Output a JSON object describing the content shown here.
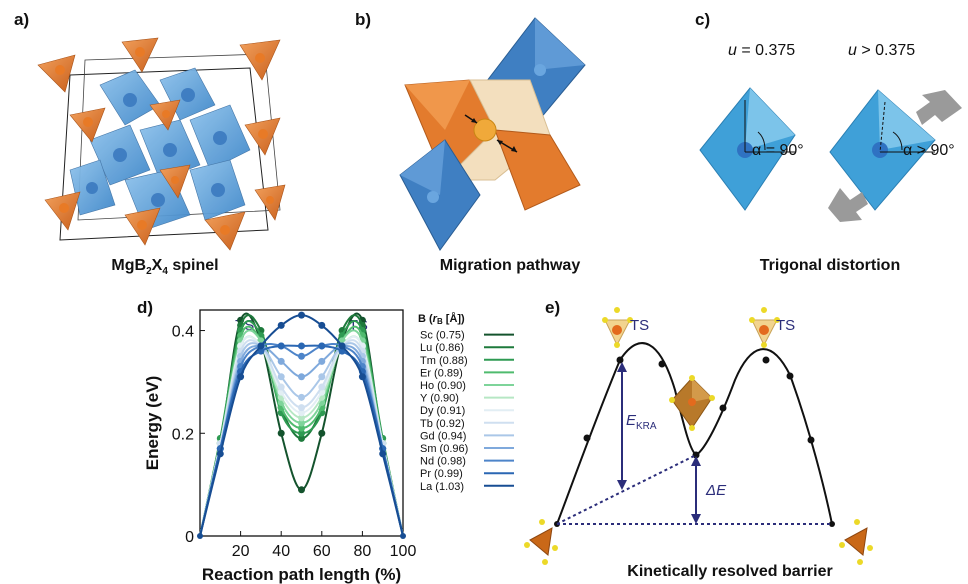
{
  "panels": {
    "a": {
      "label": "a)",
      "caption_main": "MgB",
      "caption_sub1": "2",
      "caption_mid": "X",
      "caption_sub2": "4",
      "caption_tail": " spinel"
    },
    "b": {
      "label": "b)",
      "caption": "Migration pathway"
    },
    "c": {
      "label": "c)",
      "caption": "Trigonal distortion",
      "u_equal_var": "u",
      "u_equal_rest": " = 0.375",
      "u_greater_var": "u",
      "u_greater_rest": " > 0.375",
      "angle_equal": "α = 90°",
      "angle_greater": "α > 90°"
    },
    "d": {
      "label": "d)"
    },
    "e": {
      "label": "e)",
      "caption": "Kinetically resolved barrier",
      "ts_left": "TS",
      "ts_right": "TS",
      "ekra_main": "E",
      "ekra_sub": "KRA",
      "delta_e": "ΔE"
    }
  },
  "chart_data": {
    "type": "line",
    "xlabel": "Reaction path length (%)",
    "ylabel": "Energy (eV)",
    "xlim": [
      0,
      100
    ],
    "ylim": [
      0,
      0.44
    ],
    "xticks": [
      "20",
      "40",
      "60",
      "80",
      "100"
    ],
    "xtick_values": [
      20,
      40,
      60,
      80,
      100
    ],
    "yticks": [
      "0",
      "0.2",
      "0.4"
    ],
    "ytick_values": [
      0,
      0.2,
      0.4
    ],
    "annotations": [
      "TS",
      "TS"
    ],
    "legend_title": "B (r_B [Å])",
    "legend_title_main": "B (",
    "legend_title_var": "r",
    "legend_title_sub": "B",
    "legend_title_tail": " [Å])",
    "x": [
      0,
      10,
      20,
      30,
      40,
      50,
      60,
      70,
      80,
      90,
      100
    ],
    "series": [
      {
        "name": "Sc (0.75)",
        "color": "#14532d",
        "values": [
          0,
          0.18,
          0.42,
          0.38,
          0.2,
          0.09,
          0.2,
          0.38,
          0.42,
          0.18,
          0
        ]
      },
      {
        "name": "Lu (0.86)",
        "color": "#1e7a3c",
        "values": [
          0,
          0.18,
          0.41,
          0.4,
          0.25,
          0.19,
          0.25,
          0.4,
          0.41,
          0.18,
          0
        ]
      },
      {
        "name": "Tm (0.88)",
        "color": "#2e9a52",
        "values": [
          0,
          0.19,
          0.4,
          0.39,
          0.24,
          0.2,
          0.24,
          0.39,
          0.4,
          0.19,
          0
        ]
      },
      {
        "name": "Er (0.89)",
        "color": "#4fbb6e",
        "values": [
          0,
          0.18,
          0.39,
          0.38,
          0.25,
          0.21,
          0.25,
          0.38,
          0.39,
          0.18,
          0
        ]
      },
      {
        "name": "Ho (0.90)",
        "color": "#7ed49a",
        "values": [
          0,
          0.18,
          0.38,
          0.38,
          0.26,
          0.22,
          0.26,
          0.38,
          0.38,
          0.18,
          0
        ]
      },
      {
        "name": "Y (0.90)",
        "color": "#b6e7c4",
        "values": [
          0,
          0.18,
          0.37,
          0.37,
          0.27,
          0.23,
          0.27,
          0.37,
          0.37,
          0.18,
          0
        ]
      },
      {
        "name": "Dy (0.91)",
        "color": "#e2eef4",
        "values": [
          0,
          0.18,
          0.37,
          0.37,
          0.28,
          0.24,
          0.28,
          0.37,
          0.37,
          0.18,
          0
        ]
      },
      {
        "name": "Tb (0.92)",
        "color": "#cfdff0",
        "values": [
          0,
          0.18,
          0.36,
          0.37,
          0.29,
          0.25,
          0.29,
          0.37,
          0.36,
          0.18,
          0
        ]
      },
      {
        "name": "Gd (0.94)",
        "color": "#aac7e8",
        "values": [
          0,
          0.17,
          0.35,
          0.37,
          0.31,
          0.27,
          0.31,
          0.37,
          0.35,
          0.17,
          0
        ]
      },
      {
        "name": "Sm (0.96)",
        "color": "#7fa9dc",
        "values": [
          0,
          0.17,
          0.34,
          0.37,
          0.34,
          0.31,
          0.34,
          0.37,
          0.34,
          0.17,
          0
        ]
      },
      {
        "name": "Nd (0.98)",
        "color": "#4d84c9",
        "values": [
          0,
          0.17,
          0.33,
          0.37,
          0.37,
          0.35,
          0.37,
          0.37,
          0.33,
          0.17,
          0
        ]
      },
      {
        "name": "Pr (0.99)",
        "color": "#2a67b3",
        "values": [
          0,
          0.17,
          0.32,
          0.36,
          0.37,
          0.37,
          0.37,
          0.36,
          0.32,
          0.17,
          0
        ]
      },
      {
        "name": "La (1.03)",
        "color": "#174d93",
        "values": [
          0,
          0.16,
          0.31,
          0.37,
          0.41,
          0.43,
          0.41,
          0.37,
          0.31,
          0.16,
          0
        ]
      }
    ]
  }
}
